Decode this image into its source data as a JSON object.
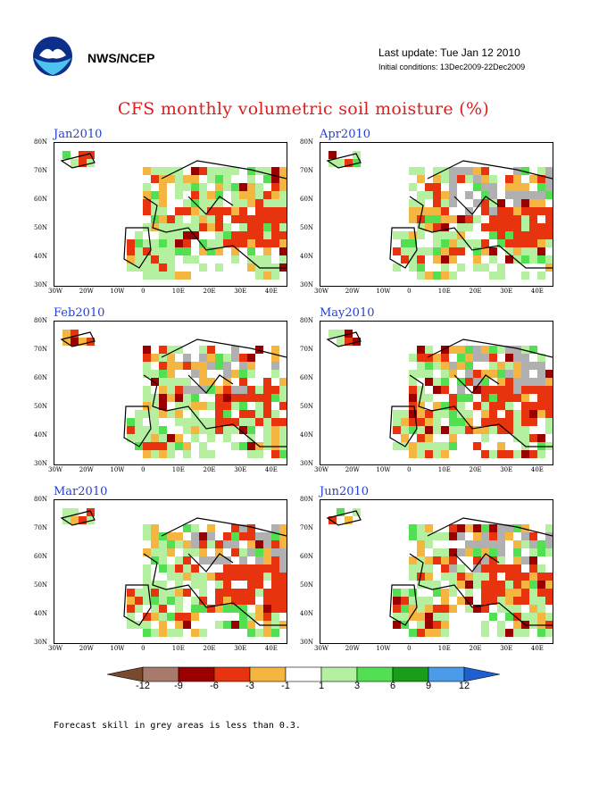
{
  "header": {
    "org": "NWS/NCEP",
    "last_update": "Last update: Tue Jan 12 2010",
    "initial_conditions": "Initial conditions: 13Dec2009-22Dec2009"
  },
  "title": "CFS monthly volumetric soil moisture (%)",
  "axes": {
    "lat_ticks": [
      "80N",
      "70N",
      "60N",
      "50N",
      "40N",
      "30N"
    ],
    "lon_ticks": [
      "30W",
      "20W",
      "10W",
      "0",
      "10E",
      "20E",
      "30E",
      "40E"
    ]
  },
  "panels": [
    {
      "label": "Jan2010"
    },
    {
      "label": "Apr2010"
    },
    {
      "label": "Feb2010"
    },
    {
      "label": "May2010"
    },
    {
      "label": "Mar2010"
    },
    {
      "label": "Jun2010"
    }
  ],
  "colorbar": {
    "tick_labels": [
      "-12",
      "-9",
      "-6",
      "-3",
      "-1",
      "1",
      "3",
      "6",
      "9",
      "12"
    ],
    "colors": [
      "#7a4a2e",
      "#a87a6c",
      "#9b0000",
      "#e8330f",
      "#f5b541",
      "#ffffff",
      "#b4f0a0",
      "#52e052",
      "#1a9e1a",
      "#4a9ce8",
      "#1f5fcf"
    ]
  },
  "footnote": "Forecast skill in grey areas is less than 0.3.",
  "chart_data": {
    "type": "heatmap",
    "title": "CFS monthly volumetric soil moisture (%)",
    "months": [
      "Jan2010",
      "Feb2010",
      "Mar2010",
      "Apr2010",
      "May2010",
      "Jun2010"
    ],
    "lat_range": [
      "30N",
      "80N"
    ],
    "lon_range": [
      "30W",
      "45E"
    ],
    "levels": [
      -12,
      -9,
      -6,
      -3,
      -1,
      1,
      3,
      6,
      9,
      12
    ],
    "grey_note": "Forecast skill in grey areas is less than 0.3."
  }
}
